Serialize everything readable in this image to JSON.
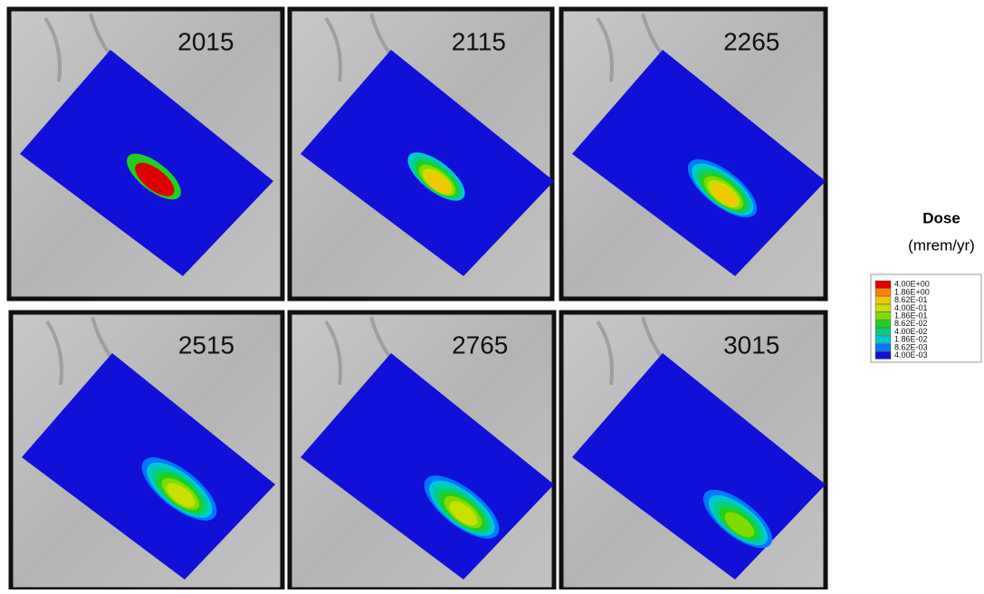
{
  "panels": [
    {
      "label": "2015"
    },
    {
      "label": "2115"
    },
    {
      "label": "2265"
    },
    {
      "label": "2515"
    },
    {
      "label": "2765"
    },
    {
      "label": "3015"
    }
  ],
  "legend": {
    "title": "Dose",
    "unit": "(mrem/yr)",
    "entries": [
      {
        "label": "4.00E+00",
        "color": "#e00000"
      },
      {
        "label": "1.86E+00",
        "color": "#ff8000"
      },
      {
        "label": "8.62E-01",
        "color": "#f0c800"
      },
      {
        "label": "4.00E-01",
        "color": "#c8e000"
      },
      {
        "label": "1.86E-01",
        "color": "#80dc00"
      },
      {
        "label": "8.62E-02",
        "color": "#20d020"
      },
      {
        "label": "4.00E-02",
        "color": "#00d080"
      },
      {
        "label": "1.86E-02",
        "color": "#00c8d0"
      },
      {
        "label": "8.62E-03",
        "color": "#0078ff"
      },
      {
        "label": "4.00E-03",
        "color": "#1010d8"
      }
    ]
  }
}
